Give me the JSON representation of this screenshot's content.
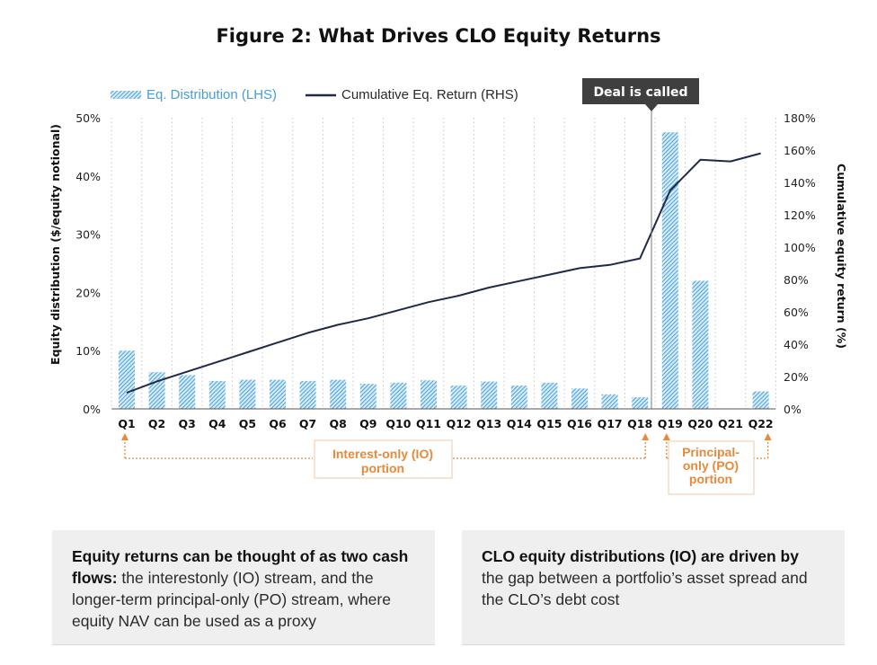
{
  "title": "Figure 2: What Drives CLO Equity Returns",
  "chart_data": {
    "type": "bar+line",
    "categories": [
      "Q1",
      "Q2",
      "Q3",
      "Q4",
      "Q5",
      "Q6",
      "Q7",
      "Q8",
      "Q9",
      "Q10",
      "Q11",
      "Q12",
      "Q13",
      "Q14",
      "Q15",
      "Q16",
      "Q17",
      "Q18",
      "Q19",
      "Q20",
      "Q21",
      "Q22"
    ],
    "series": [
      {
        "name": "Eq. Distribution (LHS)",
        "kind": "bar",
        "axis": "left",
        "color": "#5aabde",
        "values": [
          10,
          6.3,
          5.8,
          4.8,
          5.0,
          5.0,
          4.8,
          5.0,
          4.3,
          4.5,
          4.9,
          4.0,
          4.7,
          4.0,
          4.5,
          3.5,
          2.5,
          2.0,
          47.5,
          22,
          0,
          3.0
        ]
      },
      {
        "name": "Cumulative Eq. Return (RHS)",
        "kind": "line",
        "axis": "right",
        "color": "#1f2a44",
        "values": [
          10,
          17,
          23,
          29,
          35,
          41,
          47,
          52,
          56,
          61,
          66,
          70,
          75,
          79,
          83,
          87,
          89,
          93,
          135,
          154,
          153,
          158
        ]
      }
    ],
    "ylabel": "Equity distribution ($/equity notional)",
    "y2label": "Cumulative equity return (%)",
    "ylim": [
      0,
      50
    ],
    "y2lim": [
      0,
      180
    ],
    "yticks": [
      "0%",
      "10%",
      "20%",
      "30%",
      "40%",
      "50%"
    ],
    "y2ticks": [
      "0%",
      "20%",
      "40%",
      "60%",
      "80%",
      "100%",
      "120%",
      "140%",
      "160%",
      "180%"
    ],
    "legend_placement": "top-left",
    "grid": "vertical-dotted",
    "annotations": {
      "callout": {
        "text": "Deal is called",
        "at": "Q18"
      },
      "io": {
        "text_lines": [
          "Interest-only (IO)",
          "portion"
        ],
        "from": "Q1",
        "to": "Q18"
      },
      "po": {
        "text_lines": [
          "Principal-",
          "only (PO)",
          "portion"
        ],
        "from": "Q19",
        "to": "Q22"
      }
    }
  },
  "notes": {
    "left": {
      "bold": "Equity returns can be thought of as two cash flows:",
      "rest": " the interestonly (IO) stream, and the longer-term principal-only (PO) stream, where equity NAV can be used as a proxy"
    },
    "right": {
      "bold": "CLO equity distributions (IO) are driven by",
      "rest": " the gap between a portfolio’s asset spread and the CLO’s debt cost"
    }
  },
  "colors": {
    "bar": "#5aabde",
    "line": "#1f2a44",
    "annotation": "#e8893a",
    "callout": "#3f3f3f"
  }
}
